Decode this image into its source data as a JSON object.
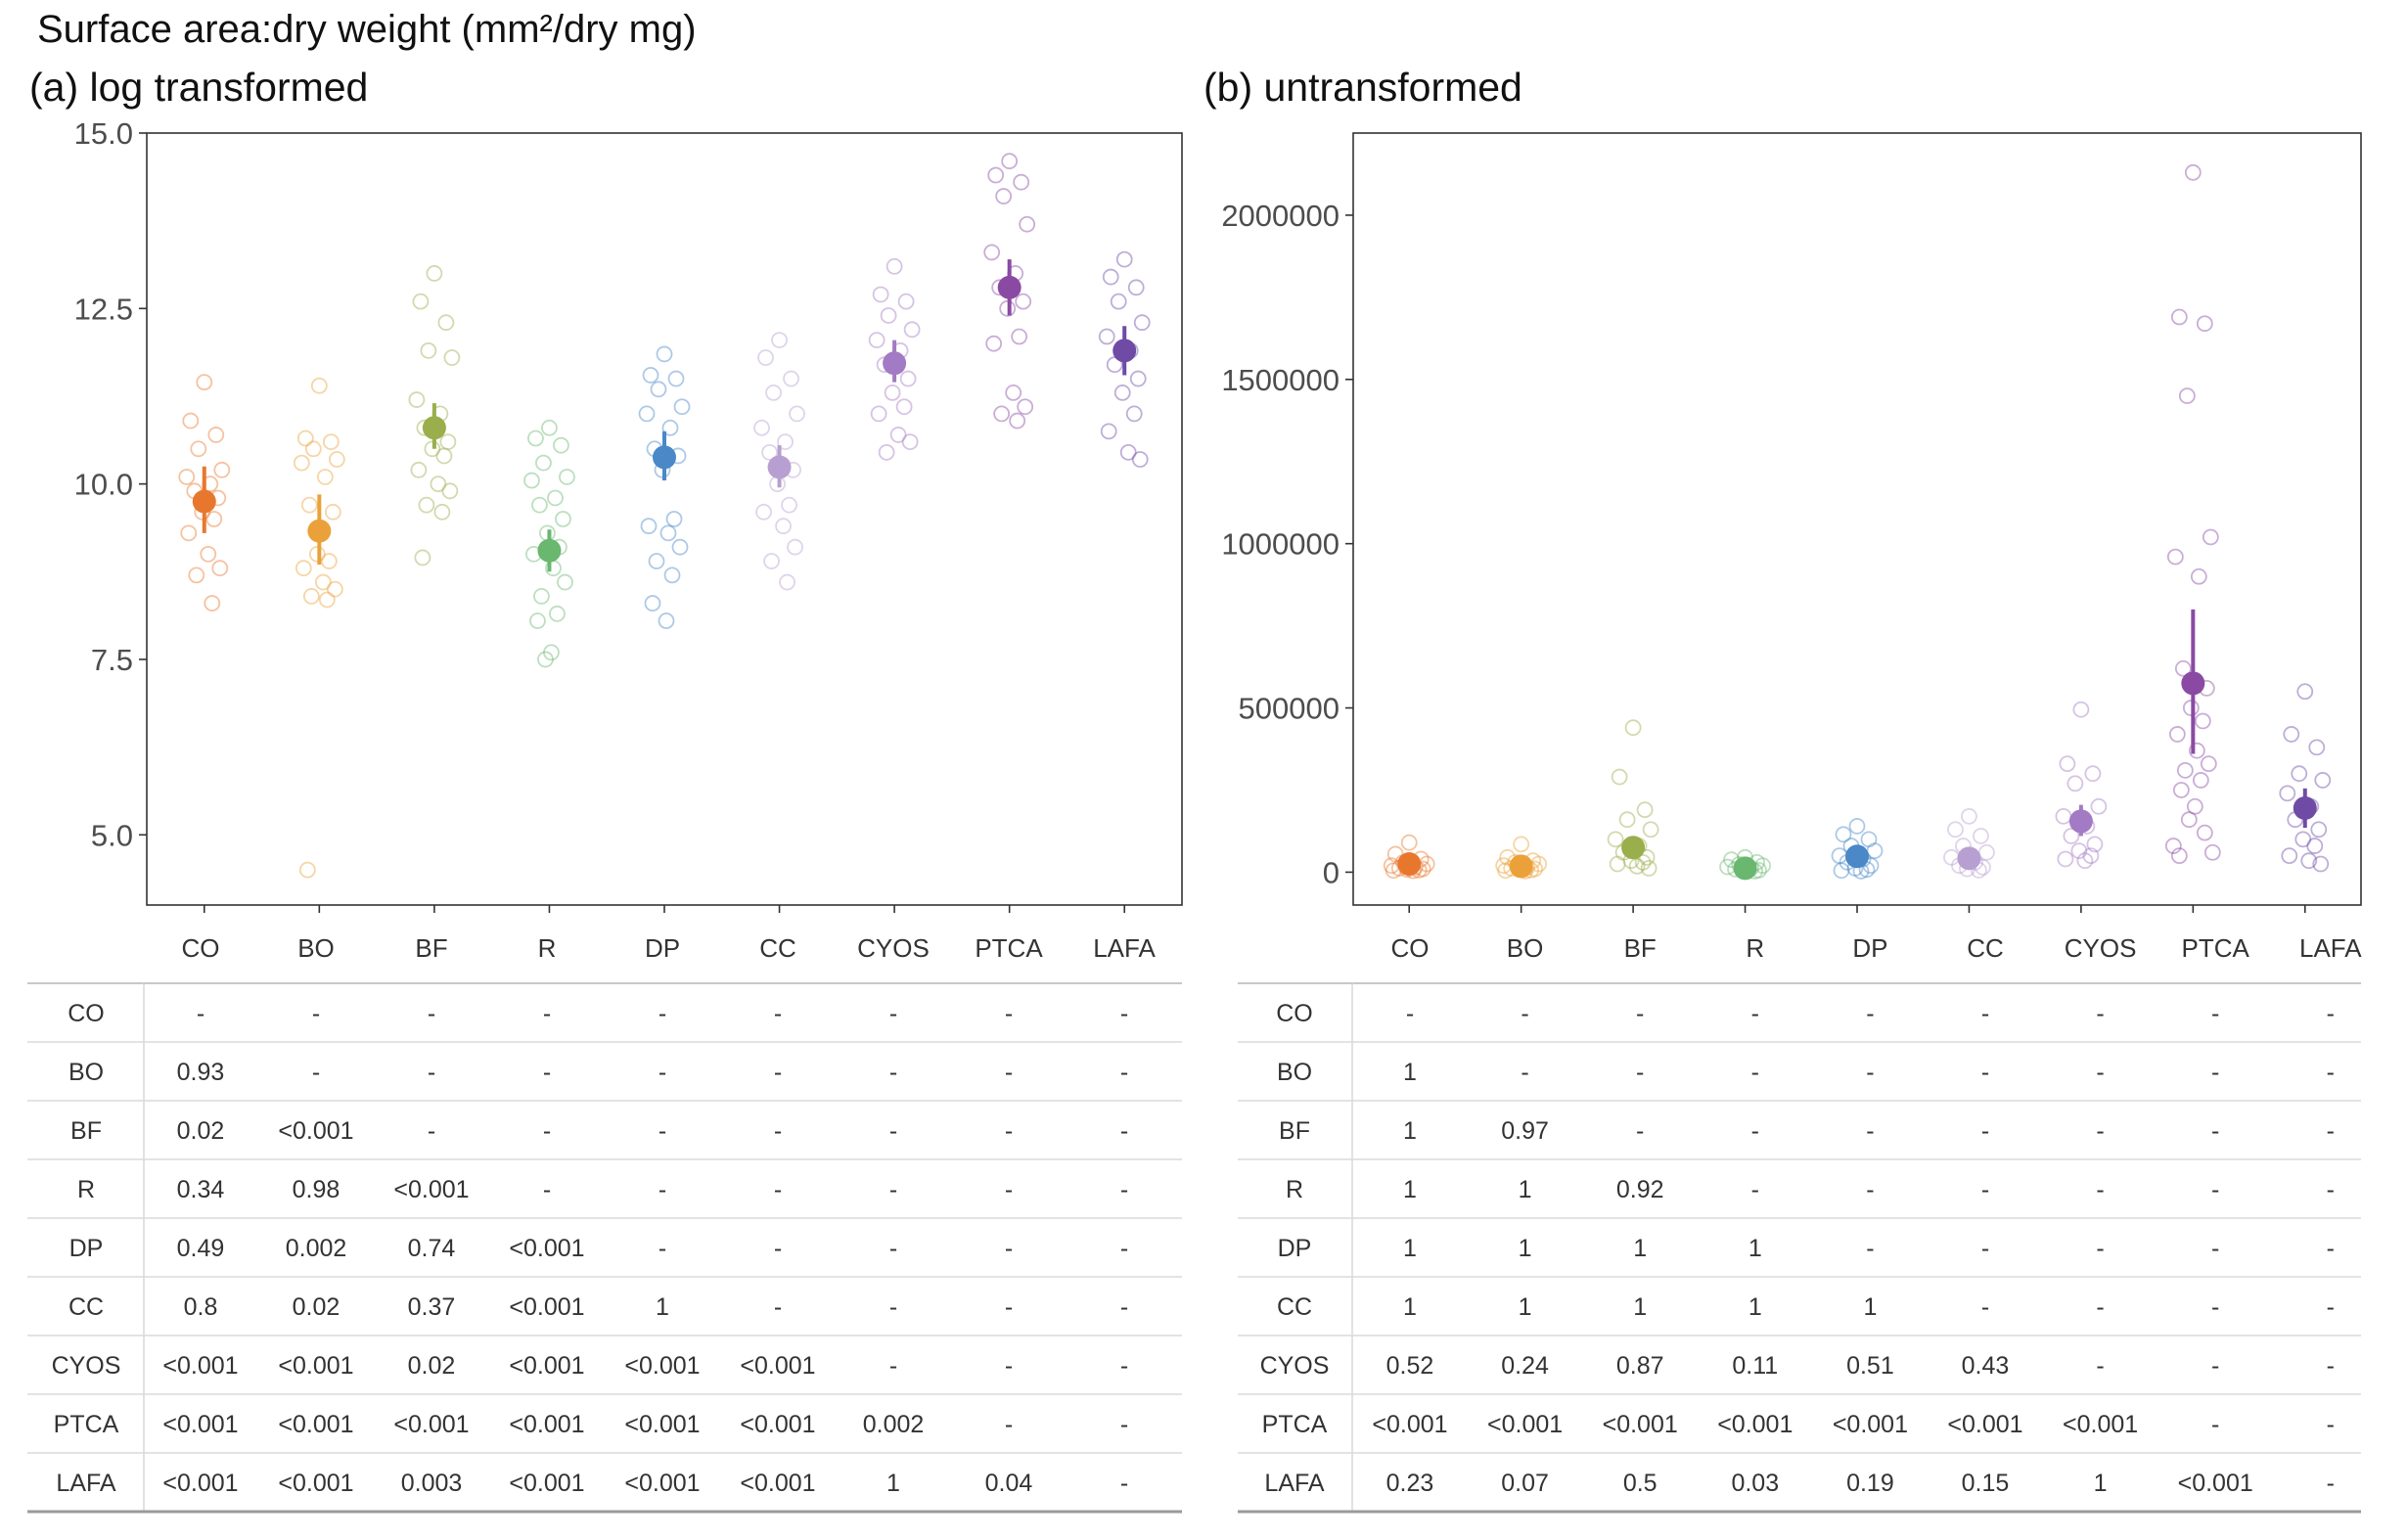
{
  "figure_title": "Surface area:dry weight (mm²/dry mg)",
  "panels": [
    {
      "title": "(a) log transformed"
    },
    {
      "title": "(b) untransformed"
    }
  ],
  "colors": {
    "CO": "#e8772e",
    "BO": "#eba13a",
    "BF": "#9aae4c",
    "R": "#6ab770",
    "DP": "#4a88c8",
    "CC": "#b89fd1",
    "CYOS": "#a37bc4",
    "PTCA": "#8a4aa3",
    "LAFA": "#6f4ba6"
  },
  "chart_data": [
    {
      "type": "scatter",
      "title": "(a) log transformed",
      "xlabel": "",
      "ylabel": "",
      "categories": [
        "CO",
        "BO",
        "BF",
        "R",
        "DP",
        "CC",
        "CYOS",
        "PTCA",
        "LAFA"
      ],
      "ylim": [
        4.0,
        15.0
      ],
      "yticks": [
        5.0,
        7.5,
        10.0,
        12.5,
        15.0
      ],
      "ytick_labels": [
        "5.0",
        "7.5",
        "10.0",
        "12.5",
        "15.0"
      ],
      "grid": false,
      "series": [
        {
          "means": [
            9.75,
            9.33,
            10.8,
            9.05,
            10.38,
            10.24,
            11.72,
            12.8,
            11.9
          ]
        },
        {
          "ci_low": [
            9.3,
            8.85,
            10.5,
            8.75,
            10.05,
            9.95,
            11.45,
            12.4,
            11.55
          ]
        },
        {
          "ci_high": [
            10.25,
            9.85,
            11.15,
            9.35,
            10.75,
            10.55,
            12.05,
            13.2,
            12.25
          ]
        }
      ],
      "points": {
        "CO": [
          11.45,
          10.9,
          10.7,
          10.5,
          10.2,
          10.1,
          10.0,
          9.9,
          9.8,
          9.6,
          9.5,
          9.3,
          9.0,
          8.8,
          8.7,
          8.3
        ],
        "BO": [
          11.4,
          10.65,
          10.6,
          10.5,
          10.35,
          10.3,
          10.1,
          9.7,
          9.6,
          9.0,
          8.9,
          8.8,
          8.6,
          8.5,
          8.4,
          8.35,
          4.5
        ],
        "BF": [
          13.0,
          12.6,
          12.3,
          11.9,
          11.8,
          11.2,
          11.0,
          10.8,
          10.6,
          10.5,
          10.4,
          10.2,
          10.0,
          9.9,
          9.7,
          9.6,
          8.95
        ],
        "R": [
          10.8,
          10.65,
          10.55,
          10.3,
          10.1,
          10.05,
          9.8,
          9.7,
          9.5,
          9.3,
          9.1,
          9.0,
          8.8,
          8.6,
          8.4,
          8.15,
          8.05,
          7.6,
          7.5
        ],
        "DP": [
          11.85,
          11.55,
          11.5,
          11.35,
          11.1,
          11.0,
          10.8,
          10.5,
          10.4,
          10.2,
          9.5,
          9.4,
          9.3,
          9.1,
          8.9,
          8.7,
          8.3,
          8.05
        ],
        "CC": [
          12.05,
          11.8,
          11.5,
          11.3,
          11.0,
          10.8,
          10.6,
          10.45,
          10.2,
          10.0,
          9.7,
          9.6,
          9.4,
          9.1,
          8.9,
          8.6
        ],
        "CYOS": [
          13.1,
          12.7,
          12.6,
          12.4,
          12.2,
          12.05,
          11.9,
          11.7,
          11.5,
          11.3,
          11.1,
          11.0,
          10.7,
          10.6,
          10.45
        ],
        "PTCA": [
          14.6,
          14.4,
          14.3,
          14.1,
          13.7,
          13.3,
          13.0,
          12.8,
          12.6,
          12.5,
          12.1,
          12.0,
          11.3,
          11.1,
          11.0,
          10.9
        ],
        "LAFA": [
          13.2,
          12.95,
          12.8,
          12.6,
          12.3,
          12.1,
          11.9,
          11.7,
          11.5,
          11.3,
          11.0,
          10.75,
          10.45,
          10.35
        ]
      }
    },
    {
      "type": "scatter",
      "title": "(b) untransformed",
      "xlabel": "",
      "ylabel": "",
      "categories": [
        "CO",
        "BO",
        "BF",
        "R",
        "DP",
        "CC",
        "CYOS",
        "PTCA",
        "LAFA"
      ],
      "ylim": [
        -100000,
        2250000
      ],
      "yticks": [
        0,
        500000,
        1000000,
        1500000,
        2000000
      ],
      "ytick_labels": [
        "0",
        "500000",
        "1000000",
        "1500000",
        "2000000"
      ],
      "grid": false,
      "series": [
        {
          "means": [
            25000,
            18000,
            75000,
            12000,
            48000,
            42000,
            155000,
            575000,
            195000
          ]
        },
        {
          "ci_low": [
            10000,
            5000,
            45000,
            5000,
            30000,
            25000,
            110000,
            360000,
            135000
          ]
        },
        {
          "ci_high": [
            45000,
            32000,
            110000,
            20000,
            68000,
            60000,
            205000,
            800000,
            255000
          ]
        }
      ],
      "points": {
        "CO": [
          90000,
          55000,
          40000,
          30000,
          25000,
          20000,
          15000,
          12000,
          10000,
          8000,
          6000,
          5000,
          4000
        ],
        "BO": [
          85000,
          45000,
          35000,
          30000,
          25000,
          20000,
          15000,
          12000,
          10000,
          8000,
          6000,
          5000,
          3000
        ],
        "BF": [
          440000,
          290000,
          190000,
          160000,
          130000,
          100000,
          80000,
          60000,
          45000,
          35000,
          30000,
          25000,
          18000,
          12000
        ],
        "R": [
          45000,
          38000,
          30000,
          24000,
          20000,
          16000,
          12000,
          9000,
          6000,
          4000,
          3000
        ],
        "DP": [
          140000,
          115000,
          100000,
          80000,
          65000,
          50000,
          40000,
          30000,
          20000,
          12000,
          8000,
          5000,
          3000
        ],
        "CC": [
          170000,
          130000,
          110000,
          80000,
          60000,
          45000,
          30000,
          20000,
          15000,
          10000,
          6000
        ],
        "CYOS": [
          495000,
          330000,
          300000,
          270000,
          200000,
          170000,
          140000,
          110000,
          85000,
          65000,
          50000,
          40000,
          35000
        ],
        "PTCA": [
          2130000,
          1690000,
          1670000,
          1450000,
          1020000,
          960000,
          900000,
          620000,
          560000,
          500000,
          460000,
          420000,
          370000,
          330000,
          310000,
          280000,
          250000,
          200000,
          160000,
          120000,
          80000,
          60000,
          50000
        ],
        "LAFA": [
          550000,
          420000,
          380000,
          300000,
          280000,
          240000,
          200000,
          160000,
          130000,
          100000,
          80000,
          50000,
          35000,
          25000
        ]
      }
    }
  ],
  "tables": [
    {
      "columns": [
        "CO",
        "BO",
        "BF",
        "R",
        "DP",
        "CC",
        "CYOS",
        "PTCA",
        "LAFA"
      ],
      "rows": [
        {
          "label": "CO",
          "cells": [
            "-",
            "-",
            "-",
            "-",
            "-",
            "-",
            "-",
            "-",
            "-"
          ]
        },
        {
          "label": "BO",
          "cells": [
            "0.93",
            "-",
            "-",
            "-",
            "-",
            "-",
            "-",
            "-",
            "-"
          ]
        },
        {
          "label": "BF",
          "cells": [
            "0.02",
            "<0.001",
            "-",
            "-",
            "-",
            "-",
            "-",
            "-",
            "-"
          ]
        },
        {
          "label": "R",
          "cells": [
            "0.34",
            "0.98",
            "<0.001",
            "-",
            "-",
            "-",
            "-",
            "-",
            "-"
          ]
        },
        {
          "label": "DP",
          "cells": [
            "0.49",
            "0.002",
            "0.74",
            "<0.001",
            "-",
            "-",
            "-",
            "-",
            "-"
          ]
        },
        {
          "label": "CC",
          "cells": [
            "0.8",
            "0.02",
            "0.37",
            "<0.001",
            "1",
            "-",
            "-",
            "-",
            "-"
          ]
        },
        {
          "label": "CYOS",
          "cells": [
            "<0.001",
            "<0.001",
            "0.02",
            "<0.001",
            "<0.001",
            "<0.001",
            "-",
            "-",
            "-"
          ]
        },
        {
          "label": "PTCA",
          "cells": [
            "<0.001",
            "<0.001",
            "<0.001",
            "<0.001",
            "<0.001",
            "<0.001",
            "0.002",
            "-",
            "-"
          ]
        },
        {
          "label": "LAFA",
          "cells": [
            "<0.001",
            "<0.001",
            "0.003",
            "<0.001",
            "<0.001",
            "<0.001",
            "1",
            "0.04",
            "-"
          ]
        }
      ]
    },
    {
      "columns": [
        "CO",
        "BO",
        "BF",
        "R",
        "DP",
        "CC",
        "CYOS",
        "PTCA",
        "LAFA"
      ],
      "rows": [
        {
          "label": "CO",
          "cells": [
            "-",
            "-",
            "-",
            "-",
            "-",
            "-",
            "-",
            "-",
            "-"
          ]
        },
        {
          "label": "BO",
          "cells": [
            "1",
            "-",
            "-",
            "-",
            "-",
            "-",
            "-",
            "-",
            "-"
          ]
        },
        {
          "label": "BF",
          "cells": [
            "1",
            "0.97",
            "-",
            "-",
            "-",
            "-",
            "-",
            "-",
            "-"
          ]
        },
        {
          "label": "R",
          "cells": [
            "1",
            "1",
            "0.92",
            "-",
            "-",
            "-",
            "-",
            "-",
            "-"
          ]
        },
        {
          "label": "DP",
          "cells": [
            "1",
            "1",
            "1",
            "1",
            "-",
            "-",
            "-",
            "-",
            "-"
          ]
        },
        {
          "label": "CC",
          "cells": [
            "1",
            "1",
            "1",
            "1",
            "1",
            "-",
            "-",
            "-",
            "-"
          ]
        },
        {
          "label": "CYOS",
          "cells": [
            "0.52",
            "0.24",
            "0.87",
            "0.11",
            "0.51",
            "0.43",
            "-",
            "-",
            "-"
          ]
        },
        {
          "label": "PTCA",
          "cells": [
            "<0.001",
            "<0.001",
            "<0.001",
            "<0.001",
            "<0.001",
            "<0.001",
            "<0.001",
            "-",
            "-"
          ]
        },
        {
          "label": "LAFA",
          "cells": [
            "0.23",
            "0.07",
            "0.5",
            "0.03",
            "0.19",
            "0.15",
            "1",
            "<0.001",
            "-"
          ]
        }
      ]
    }
  ]
}
